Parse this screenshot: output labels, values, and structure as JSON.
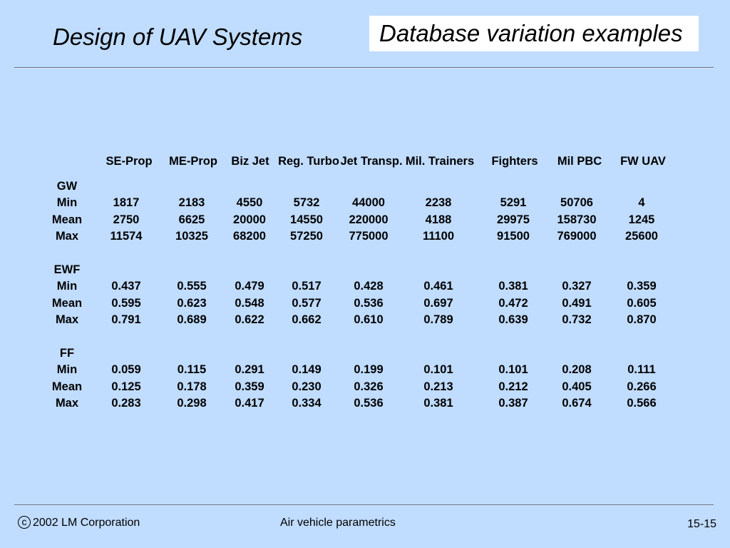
{
  "slide": {
    "title": "Design of UAV Systems",
    "heading_box": "Database variation examples"
  },
  "table": {
    "columns": [
      "SE-Prop",
      "ME-Prop",
      "Biz Jet",
      "Reg. Turbo",
      "Jet Transp.",
      "Mil. Trainers",
      "Fighters",
      "Mil PBC",
      "FW UAV"
    ],
    "groups": [
      {
        "name": "GW",
        "rows": [
          {
            "label": "Min",
            "values": [
              "1817",
              "2183",
              "4550",
              "5732",
              "44000",
              "2238",
              "5291",
              "50706",
              "4"
            ]
          },
          {
            "label": "Mean",
            "values": [
              "2750",
              "6625",
              "20000",
              "14550",
              "220000",
              "4188",
              "29975",
              "158730",
              "1245"
            ]
          },
          {
            "label": "Max",
            "values": [
              "11574",
              "10325",
              "68200",
              "57250",
              "775000",
              "11100",
              "91500",
              "769000",
              "25600"
            ]
          }
        ]
      },
      {
        "name": "EWF",
        "rows": [
          {
            "label": "Min",
            "values": [
              "0.437",
              "0.555",
              "0.479",
              "0.517",
              "0.428",
              "0.461",
              "0.381",
              "0.327",
              "0.359"
            ]
          },
          {
            "label": "Mean",
            "values": [
              "0.595",
              "0.623",
              "0.548",
              "0.577",
              "0.536",
              "0.697",
              "0.472",
              "0.491",
              "0.605"
            ]
          },
          {
            "label": "Max",
            "values": [
              "0.791",
              "0.689",
              "0.622",
              "0.662",
              "0.610",
              "0.789",
              "0.639",
              "0.732",
              "0.870"
            ]
          }
        ]
      },
      {
        "name": "FF",
        "rows": [
          {
            "label": "Min",
            "values": [
              "0.059",
              "0.115",
              "0.291",
              "0.149",
              "0.199",
              "0.101",
              "0.101",
              "0.208",
              "0.111"
            ]
          },
          {
            "label": "Mean",
            "values": [
              "0.125",
              "0.178",
              "0.359",
              "0.230",
              "0.326",
              "0.213",
              "0.212",
              "0.405",
              "0.266"
            ]
          },
          {
            "label": "Max",
            "values": [
              "0.283",
              "0.298",
              "0.417",
              "0.334",
              "0.536",
              "0.381",
              "0.387",
              "0.674",
              "0.566"
            ]
          }
        ]
      }
    ]
  },
  "footer": {
    "copyright_mark": "c",
    "owner": "2002 LM Corporation",
    "topic": "Air vehicle parametrics",
    "page": "15-15"
  },
  "colors": {
    "background": "#C0DCFF",
    "text": "#000000",
    "rule": "#5C6B80",
    "heading_box": "#FFFFFF"
  }
}
